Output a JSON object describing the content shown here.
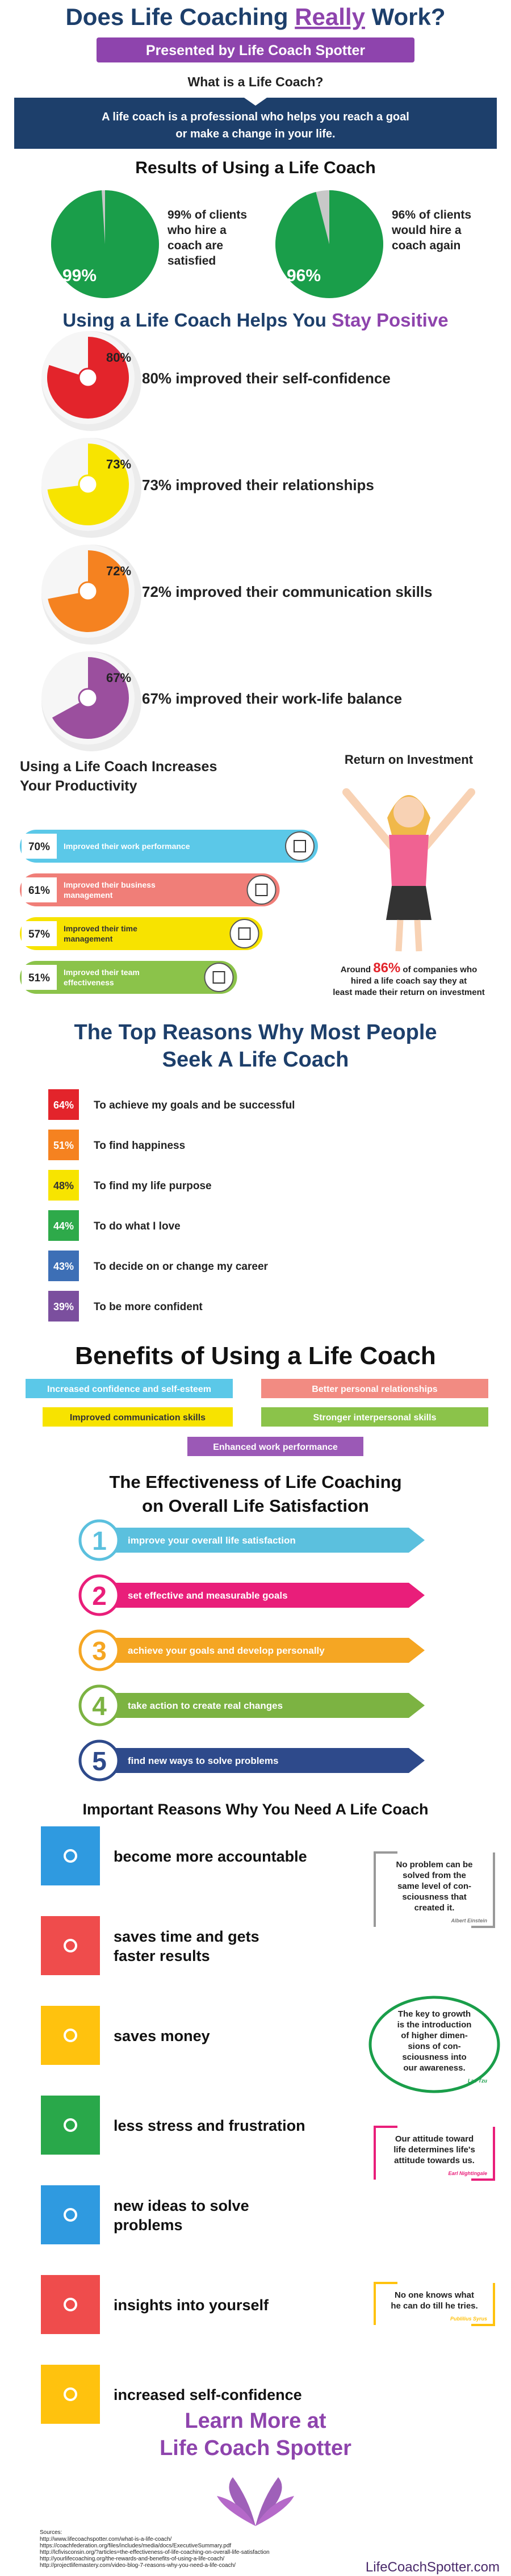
{
  "header": {
    "title_start": "Does Life Coaching ",
    "title_emphasis": "Really",
    "title_end": " Work?",
    "presented_by": "Presented by Life Coach Spotter"
  },
  "definition": {
    "question": "What is a Life Coach?",
    "lines": [
      "A life coach is a professional who helps you reach a goal",
      "or make a change in your life."
    ]
  },
  "results": {
    "title": "Results of Using a Life Coach",
    "items": [
      {
        "value": 99,
        "label": "99%",
        "lines": [
          "99% of clients",
          "who hire a",
          "coach are",
          "satisfied"
        ]
      },
      {
        "value": 96,
        "label": "96%",
        "lines": [
          "96% of clients",
          "would hire a",
          "coach again"
        ]
      }
    ]
  },
  "positive": {
    "title_start": "Using a Life Coach Helps You ",
    "title_emphasis": "Stay Positive",
    "items": [
      {
        "value": 80,
        "label": "80%",
        "text": "80% improved their self-confidence"
      },
      {
        "value": 73,
        "label": "73%",
        "text": "73% improved their relationships"
      },
      {
        "value": 72,
        "label": "72%",
        "text": "72% improved their communication skills"
      },
      {
        "value": 67,
        "label": "67%",
        "text": "67% improved their work-life balance"
      }
    ]
  },
  "productivity": {
    "title_lines": [
      "Using a Life Coach Increases",
      "Your Productivity"
    ],
    "items": [
      {
        "value": 70,
        "label": "70%",
        "lines": [
          "Improved their work performance"
        ]
      },
      {
        "value": 61,
        "label": "61%",
        "lines": [
          "Improved their business",
          "management"
        ]
      },
      {
        "value": 57,
        "label": "57%",
        "lines": [
          "Improved their time",
          "management"
        ]
      },
      {
        "value": 51,
        "label": "51%",
        "lines": [
          "Improved their team",
          "effectiveness"
        ]
      }
    ]
  },
  "roi": {
    "title": "Return on Investment",
    "caption_start": "Around ",
    "caption_highlight": "86%",
    "caption_lines": [
      " of companies who",
      "hired a life coach say they at",
      "least made their return on investment"
    ]
  },
  "reasons": {
    "title_lines": [
      "The Top Reasons Why Most People",
      "Seek A Life Coach"
    ],
    "items": [
      {
        "label": "64%",
        "text": "To achieve my goals and be successful"
      },
      {
        "label": "51%",
        "text": "To find happiness"
      },
      {
        "label": "48%",
        "text": "To find my life purpose"
      },
      {
        "label": "44%",
        "text": "To do what I love"
      },
      {
        "label": "43%",
        "text": "To decide on or change my career"
      },
      {
        "label": "39%",
        "text": "To be more confident"
      }
    ]
  },
  "benefits": {
    "title": "Benefits of Using a Life Coach",
    "items": [
      "Increased confidence and self-esteem",
      "Better personal relationships",
      "Improved communication skills",
      "Stronger interpersonal skills",
      "Enhanced work performance"
    ]
  },
  "effectiveness": {
    "title_lines": [
      "The Effectiveness of Life Coaching",
      "on Overall Life Satisfaction"
    ],
    "items": [
      {
        "number": 1,
        "text": "improve your overall life satisfaction"
      },
      {
        "number": 2,
        "text": "set effective and measurable goals"
      },
      {
        "number": 3,
        "text": "achieve your goals and develop personally"
      },
      {
        "number": 4,
        "text": "take action to create real changes"
      },
      {
        "number": 5,
        "text": "find new ways to solve problems"
      }
    ]
  },
  "important": {
    "title": "Important Reasons Why You Need A Life Coach",
    "items": [
      [
        "become more accountable"
      ],
      [
        "saves time and gets",
        "faster results"
      ],
      [
        "saves  money"
      ],
      [
        "less stress and frustration"
      ],
      [
        "new ideas to solve",
        "problems"
      ],
      [
        "insights into yourself"
      ],
      [
        "increased  self-confidence"
      ]
    ],
    "quotes": [
      {
        "lines": [
          "No problem can be",
          "solved from the",
          "same level of con-",
          "sciousness that",
          "created it."
        ],
        "author": "Albert Einstein"
      },
      {
        "lines": [
          "The key to growth",
          "is the introduction",
          "of higher dimen-",
          "sions of con-",
          "sciousness into",
          "our awareness."
        ],
        "author": "Lao Tzu"
      },
      {
        "lines": [
          "Our attitude toward",
          "life determines life's",
          "attitude towards us."
        ],
        "author": "Earl Nightingale"
      },
      {
        "lines": [
          "No one knows what",
          "he can do till he tries."
        ],
        "author": "Publilius Syrus"
      }
    ]
  },
  "footer": {
    "learn_lines": [
      "Learn More at",
      "Life Coach Spotter"
    ],
    "sources_title": "Sources:",
    "sources": [
      "http://www.lifecoachspotter.com/what-is-a-life-coach/",
      "https://coachfederation.org/files/includes/media/docs/ExecutiveSummary.pdf",
      "http://lcfivisconsin.org/?articles=the-effectiveness-of-life-coaching-on-overall-life-satisfaction",
      "http://yourlifecoaching.org/the-rewards-and-benefits-of-using-a-life-coach/",
      "http://projectlifemastery.com/video-blog-7-reasons-why-you-need-a-life-coach/"
    ],
    "site": "LifeCoachSpotter.com"
  }
}
